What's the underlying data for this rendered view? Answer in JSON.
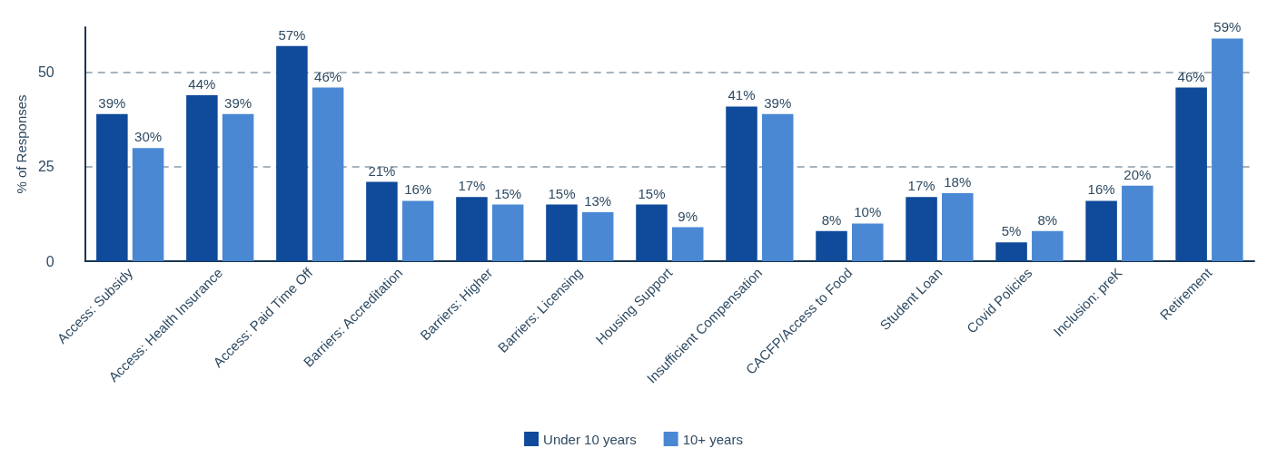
{
  "chart_data": {
    "type": "bar",
    "ylabel": "% of Responses",
    "categories": [
      "Access: Subsidy",
      "Access: Health Insurance",
      "Access: Paid Time Off",
      "Barriers: Accreditation",
      "Barriers: Higher",
      "Barriers: Licensing",
      "Housing Support",
      "Insufficient Compensation",
      "CACFP/Access to Food",
      "Student Loan",
      "Covid Policies",
      "Inclusion: preK",
      "Retirement"
    ],
    "series": [
      {
        "name": "Under 10 years",
        "color": "#0f4a9b",
        "values": [
          39,
          44,
          57,
          21,
          17,
          15,
          15,
          41,
          8,
          17,
          5,
          16,
          46
        ],
        "value_labels": [
          "39%",
          "44%",
          "57%",
          "21%",
          "17%",
          "15%",
          "15%",
          "41%",
          "8%",
          "17%",
          "5%",
          "16%",
          "46%"
        ]
      },
      {
        "name": "10+ years",
        "color": "#4a88d3",
        "values": [
          30,
          39,
          46,
          16,
          15,
          13,
          9,
          39,
          10,
          18,
          8,
          20,
          59
        ],
        "value_labels": [
          "30%",
          "39%",
          "46%",
          "16%",
          "15%",
          "13%",
          "9%",
          "39%",
          "10%",
          "18%",
          "8%",
          "20%",
          "59%"
        ]
      }
    ],
    "ylim": [
      0,
      62
    ],
    "yticks": [
      0,
      25,
      50
    ],
    "grid": "y",
    "legend": "bottom"
  }
}
